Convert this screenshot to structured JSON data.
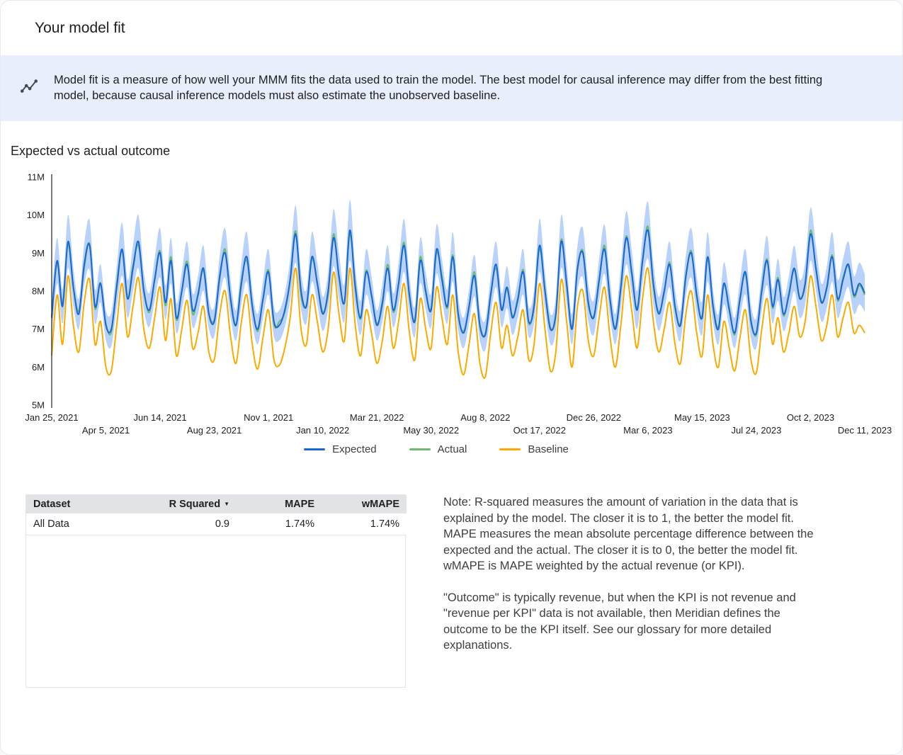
{
  "page": {
    "title": "Your model fit",
    "banner_text": "Model fit is a measure of how well your MMM fits the data used to train the model. The best model for causal inference may differ from the best fitting model, because causal inference models must also estimate the unobserved baseline.",
    "section_title": "Expected vs actual outcome"
  },
  "chart_data": {
    "type": "line",
    "title": "Expected vs actual outcome",
    "y_ticks": [
      "5M",
      "6M",
      "7M",
      "8M",
      "9M",
      "10M",
      "11M"
    ],
    "y_range_millions": [
      5,
      11
    ],
    "x_weeks_per_tick": 10,
    "x_tick_labels": [
      "Jan 25, 2021",
      "Apr 5, 2021",
      "Jun 14, 2021",
      "Aug 23, 2021",
      "Nov 1, 2021",
      "Jan 10, 2022",
      "Mar 21, 2022",
      "May 30, 2022",
      "Aug 8, 2022",
      "Oct 17, 2022",
      "Dec 26, 2022",
      "Mar 6, 2023",
      "May 15, 2023",
      "Jul 24, 2023",
      "Oct 2, 2023",
      "Dec 11, 2023"
    ],
    "band_color": "#a8c7fa",
    "legend": [
      {
        "name": "Expected",
        "color": "#1967d2"
      },
      {
        "name": "Actual",
        "color": "#6cb96f"
      },
      {
        "name": "Baseline",
        "color": "#f9ab00"
      }
    ],
    "series": {
      "expected": [
        7.3,
        8.8,
        7.6,
        9.3,
        8.1,
        7.4,
        8.7,
        9.2,
        7.6,
        8.2,
        7.1,
        7.0,
        8.1,
        9.1,
        7.8,
        8.6,
        9.3,
        8.0,
        7.5,
        8.3,
        9.0,
        7.7,
        8.8,
        7.3,
        8.0,
        8.7,
        7.5,
        7.9,
        8.6,
        7.4,
        7.2,
        8.4,
        9.0,
        7.8,
        7.1,
        8.2,
        8.9,
        7.6,
        7.0,
        7.8,
        8.5,
        7.2,
        7.1,
        7.5,
        8.3,
        9.5,
        8.0,
        7.6,
        8.9,
        8.2,
        7.4,
        8.0,
        9.4,
        8.4,
        7.7,
        9.6,
        8.1,
        7.3,
        8.5,
        7.9,
        7.1,
        7.7,
        8.6,
        7.5,
        8.2,
        9.2,
        7.9,
        7.2,
        8.8,
        8.0,
        7.5,
        9.1,
        8.3,
        7.6,
        8.9,
        7.4,
        6.9,
        7.6,
        8.4,
        7.1,
        6.85,
        7.9,
        8.7,
        7.5,
        8.1,
        7.3,
        7.8,
        8.5,
        7.2,
        7.6,
        9.2,
        8.0,
        7.0,
        7.4,
        9.3,
        8.2,
        7.0,
        8.6,
        9.0,
        7.7,
        7.3,
        8.3,
        9.1,
        7.8,
        7.0,
        8.1,
        9.4,
        8.5,
        7.5,
        8.8,
        9.6,
        8.2,
        7.4,
        8.0,
        8.7,
        7.6,
        7.1,
        8.4,
        9.0,
        7.9,
        7.3,
        8.9,
        7.6,
        7.0,
        8.2,
        7.5,
        6.9,
        7.8,
        8.5,
        7.2,
        6.9,
        8.0,
        8.8,
        7.6,
        8.3,
        7.4,
        7.9,
        8.6,
        7.8,
        8.2,
        9.5,
        8.6,
        7.7,
        8.1,
        8.9,
        7.8,
        8.3,
        8.7,
        7.9,
        8.2,
        7.95
      ],
      "actual": [
        7.35,
        8.72,
        7.7,
        9.25,
        8.1,
        7.48,
        8.6,
        9.24,
        7.54,
        8.22,
        7.15,
        6.92,
        8.2,
        9.05,
        7.8,
        8.68,
        9.2,
        8.04,
        7.44,
        8.32,
        9.05,
        7.62,
        8.9,
        7.25,
        8.0,
        8.78,
        7.4,
        7.94,
        8.54,
        7.42,
        7.25,
        8.32,
        9.1,
        7.75,
        7.1,
        8.28,
        8.8,
        7.64,
        6.94,
        7.82,
        8.55,
        7.12,
        7.2,
        7.45,
        8.3,
        9.58,
        7.9,
        7.64,
        8.84,
        8.22,
        7.45,
        7.92,
        9.5,
        8.35,
        7.7,
        9.5,
        8.2,
        7.26,
        8.54,
        7.88,
        7.15,
        7.62,
        8.7,
        7.45,
        8.2,
        9.28,
        7.84,
        7.26,
        8.9,
        7.95,
        7.55,
        9.0,
        8.4,
        7.55,
        8.95,
        7.35,
        6.95,
        7.56,
        8.5,
        7.05,
        6.9,
        7.95,
        8.6,
        7.55,
        8.05,
        7.35,
        7.74,
        8.56,
        7.15,
        7.66,
        9.1,
        8.05,
        7.05,
        7.36,
        9.36,
        8.14,
        7.05,
        8.55,
        9.06,
        7.64,
        7.35,
        8.25,
        9.2,
        7.74,
        7.05,
        8.05,
        9.45,
        8.44,
        7.56,
        8.75,
        9.7,
        8.14,
        7.45,
        7.95,
        8.76,
        7.55,
        7.15,
        8.35,
        9.06,
        7.84,
        7.35,
        8.84,
        7.65,
        7.05,
        8.15,
        7.56,
        6.85,
        7.85,
        8.44,
        7.25,
        6.85,
        8.05,
        8.84,
        7.55,
        8.36,
        7.35,
        7.95,
        8.55,
        7.84,
        8.15,
        9.6,
        8.55,
        7.74,
        8.05,
        8.95,
        7.75,
        8.36,
        8.65,
        7.85,
        8.15,
        7.9
      ],
      "baseline": [
        6.3,
        7.9,
        6.6,
        8.4,
        7.1,
        6.4,
        7.7,
        8.3,
        6.6,
        7.2,
        6.0,
        5.9,
        7.1,
        8.2,
        6.8,
        7.6,
        8.35,
        7.0,
        6.5,
        7.3,
        8.1,
        6.7,
        7.8,
        6.3,
        7.0,
        7.75,
        6.5,
        6.9,
        7.6,
        6.4,
        6.2,
        7.4,
        8.0,
        6.8,
        6.1,
        7.2,
        7.9,
        6.6,
        5.95,
        6.8,
        7.5,
        6.2,
        6.05,
        6.5,
        7.3,
        8.6,
        7.0,
        6.6,
        7.9,
        7.2,
        6.4,
        7.0,
        8.5,
        7.4,
        6.7,
        8.6,
        7.1,
        6.3,
        7.5,
        6.9,
        6.1,
        6.7,
        7.6,
        6.5,
        7.2,
        8.2,
        6.9,
        6.2,
        7.8,
        7.0,
        6.5,
        8.1,
        7.3,
        6.6,
        7.9,
        6.4,
        5.8,
        6.6,
        7.4,
        6.1,
        5.75,
        6.9,
        7.7,
        6.5,
        7.1,
        6.3,
        6.8,
        7.5,
        6.2,
        6.6,
        8.2,
        7.0,
        5.9,
        6.4,
        8.3,
        7.2,
        6.0,
        7.6,
        8.0,
        6.7,
        6.3,
        7.3,
        8.1,
        6.8,
        6.0,
        7.1,
        8.4,
        7.5,
        6.5,
        7.8,
        8.6,
        7.2,
        6.4,
        7.0,
        7.7,
        6.6,
        6.1,
        7.4,
        8.0,
        6.9,
        6.3,
        7.9,
        6.6,
        6.0,
        7.2,
        6.5,
        5.9,
        6.8,
        7.5,
        6.2,
        5.85,
        7.0,
        7.8,
        6.6,
        7.3,
        6.4,
        6.9,
        7.6,
        6.8,
        7.2,
        8.4,
        7.6,
        6.7,
        7.1,
        7.9,
        6.8,
        7.3,
        7.7,
        6.9,
        7.1,
        6.9
      ],
      "ci_halfwidth": [
        0.5,
        0.6,
        0.45,
        0.7,
        0.5,
        0.4,
        0.55,
        0.65,
        0.45,
        0.5,
        0.4,
        0.45,
        0.55,
        0.7,
        0.5,
        0.6,
        0.7,
        0.5,
        0.45,
        0.55,
        0.65,
        0.45,
        0.6,
        0.4,
        0.5,
        0.6,
        0.45,
        0.5,
        0.6,
        0.4,
        0.4,
        0.55,
        0.65,
        0.5,
        0.4,
        0.55,
        0.65,
        0.45,
        0.4,
        0.5,
        0.6,
        0.4,
        0.4,
        0.45,
        0.55,
        0.75,
        0.5,
        0.45,
        0.65,
        0.55,
        0.45,
        0.5,
        0.75,
        0.6,
        0.5,
        0.8,
        0.55,
        0.45,
        0.6,
        0.5,
        0.4,
        0.5,
        0.6,
        0.45,
        0.55,
        0.7,
        0.5,
        0.4,
        0.6,
        0.5,
        0.45,
        0.65,
        0.55,
        0.45,
        0.65,
        0.45,
        0.4,
        0.45,
        0.55,
        0.4,
        0.4,
        0.5,
        0.6,
        0.45,
        0.55,
        0.45,
        0.5,
        0.6,
        0.4,
        0.45,
        0.7,
        0.5,
        0.4,
        0.45,
        0.7,
        0.55,
        0.4,
        0.6,
        0.65,
        0.5,
        0.45,
        0.55,
        0.65,
        0.5,
        0.4,
        0.55,
        0.7,
        0.6,
        0.5,
        0.6,
        0.75,
        0.55,
        0.45,
        0.5,
        0.6,
        0.45,
        0.4,
        0.55,
        0.65,
        0.5,
        0.45,
        0.65,
        0.45,
        0.4,
        0.55,
        0.45,
        0.4,
        0.5,
        0.6,
        0.45,
        0.4,
        0.5,
        0.65,
        0.45,
        0.55,
        0.45,
        0.5,
        0.6,
        0.5,
        0.55,
        0.7,
        0.6,
        0.5,
        0.55,
        0.65,
        0.5,
        0.55,
        0.6,
        0.5,
        0.55,
        0.5
      ]
    }
  },
  "table": {
    "columns": [
      {
        "label": "Dataset"
      },
      {
        "label": "R Squared",
        "sort": "desc"
      },
      {
        "label": "MAPE"
      },
      {
        "label": "wMAPE"
      }
    ],
    "rows": [
      [
        "All Data",
        "0.9",
        "1.74%",
        "1.74%"
      ]
    ]
  },
  "notes": {
    "p1": "Note: R-squared measures the amount of variation in the data that is explained by the model. The closer it is to 1, the better the model fit. MAPE measures the mean absolute percentage difference between the expected and the actual. The closer it is to 0, the better the model fit. wMAPE is MAPE weighted by the actual revenue (or KPI).",
    "p2": "\"Outcome\" is typically revenue, but when the KPI is not revenue and \"revenue per KPI\" data is not available, then Meridian defines the outcome to be the KPI itself. See our glossary for more detailed explanations."
  }
}
